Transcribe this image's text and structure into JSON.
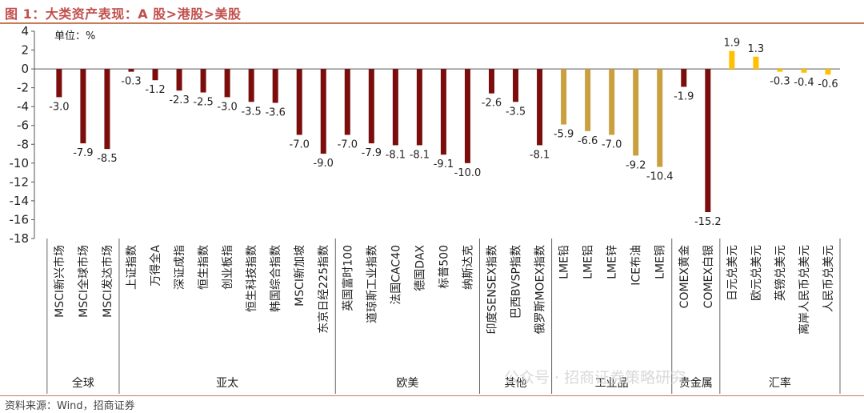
{
  "figure": {
    "title": "图 1：大类资产表现：A 股>港股>美股",
    "source": "资料来源：Wind，招商证券",
    "watermark": "公众号 · 招商证券策略研究"
  },
  "chart_data": {
    "type": "bar",
    "unit_label": "单位：%",
    "ylim": [
      -18,
      4
    ],
    "yticks": [
      4,
      2,
      0,
      -2,
      -4,
      -6,
      -8,
      -10,
      -12,
      -14,
      -16,
      -18
    ],
    "grid": false,
    "colors": {
      "dark_red": "#7b0d0d",
      "gold": "#c9a03f",
      "yellow": "#ffc000"
    },
    "groups": [
      {
        "name": "全球",
        "color": "dark_red",
        "bars": [
          {
            "label": "MSCI新兴市场",
            "value": -3.0
          },
          {
            "label": "MSCI全球市场",
            "value": -7.9
          },
          {
            "label": "MSCI发达市场",
            "value": -8.5
          }
        ]
      },
      {
        "name": "亚太",
        "color": "dark_red",
        "bars": [
          {
            "label": "上证指数",
            "value": -0.3
          },
          {
            "label": "万得全A",
            "value": -1.2
          },
          {
            "label": "深证成指",
            "value": -2.3
          },
          {
            "label": "恒生指数",
            "value": -2.5
          },
          {
            "label": "创业板指",
            "value": -3.0
          },
          {
            "label": "恒生科技指数",
            "value": -3.5
          },
          {
            "label": "韩国综合指数",
            "value": -3.6
          },
          {
            "label": "MSCI新加坡",
            "value": -7.0
          },
          {
            "label": "东京日经225指数",
            "value": -9.0
          }
        ]
      },
      {
        "name": "欧美",
        "color": "dark_red",
        "bars": [
          {
            "label": "英国富时100",
            "value": -7.0
          },
          {
            "label": "道琼斯工业指数",
            "value": -7.9
          },
          {
            "label": "法国CAC40",
            "value": -8.1
          },
          {
            "label": "德国DAX",
            "value": -8.1
          },
          {
            "label": "标普500",
            "value": -9.1
          },
          {
            "label": "纳斯达克",
            "value": -10.0
          }
        ]
      },
      {
        "name": "其他",
        "color": "dark_red",
        "bars": [
          {
            "label": "印度SENSEX指数",
            "value": -2.6
          },
          {
            "label": "巴西BVSP指数",
            "value": -3.5
          },
          {
            "label": "俄罗斯MOEX指数",
            "value": -8.1
          }
        ]
      },
      {
        "name": "工业品",
        "color": "gold",
        "bars": [
          {
            "label": "LME铅",
            "value": -5.9
          },
          {
            "label": "LME铝",
            "value": -6.6
          },
          {
            "label": "LME锌",
            "value": -7.0
          },
          {
            "label": "ICE布油",
            "value": -9.2
          },
          {
            "label": "LME铜",
            "value": -10.4
          }
        ]
      },
      {
        "name": "贵金属",
        "color": "dark_red",
        "bars": [
          {
            "label": "COMEX黄金",
            "value": -1.9
          },
          {
            "label": "COMEX白银",
            "value": -15.2
          }
        ]
      },
      {
        "name": "汇率",
        "color": "yellow",
        "bars": [
          {
            "label": "日元兑美元",
            "value": 1.9
          },
          {
            "label": "欧元兑美元",
            "value": 1.3
          },
          {
            "label": "英镑兑美元",
            "value": -0.3
          },
          {
            "label": "离岸人民币兑美元",
            "value": -0.4
          },
          {
            "label": "人民币兑美元",
            "value": -0.6
          }
        ]
      }
    ]
  }
}
